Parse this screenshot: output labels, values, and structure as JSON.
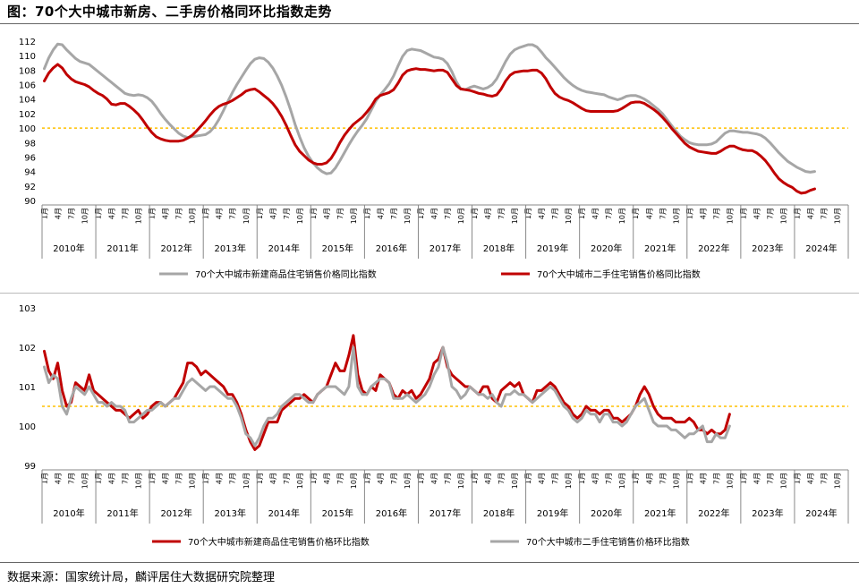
{
  "title": "图：70个大中城市新房、二手房价格同环比指数走势",
  "source": "数据来源：国家统计局，麟评居住大数据研究院整理",
  "colors": {
    "gray": "#A6A6A6",
    "red": "#C00000",
    "ref": "#FFC000",
    "axis": "#888888"
  },
  "month_labels": [
    "1月",
    "4月",
    "7月",
    "10月"
  ],
  "chart_data": [
    {
      "type": "line",
      "x_start": "2010-01",
      "years": [
        "2010年",
        "2011年",
        "2012年",
        "2013年",
        "2014年",
        "2015年",
        "2016年",
        "2017年",
        "2018年",
        "2019年",
        "2020年",
        "2021年",
        "2022年",
        "2023年",
        "2024年"
      ],
      "ylim": [
        90,
        112
      ],
      "yticks": [
        "90",
        "92",
        "94",
        "96",
        "98",
        "100",
        "102",
        "104",
        "106",
        "108",
        "110",
        "112"
      ],
      "reference_line": 100,
      "legend_placement": "bottom",
      "series": [
        {
          "name": "70个大中城市新建商品住宅销售价格同比指数",
          "color": "gray",
          "values": [
            108.2,
            109.7,
            110.8,
            111.6,
            111.5,
            110.8,
            110.2,
            109.6,
            109.2,
            109.0,
            108.8,
            108.3,
            107.8,
            107.3,
            106.8,
            106.3,
            105.8,
            105.3,
            104.8,
            104.6,
            104.5,
            104.6,
            104.5,
            104.2,
            103.7,
            102.9,
            102.0,
            101.2,
            100.5,
            99.9,
            99.3,
            98.9,
            98.7,
            98.8,
            98.9,
            99.0,
            99.1,
            99.5,
            100.2,
            101.2,
            102.4,
            103.7,
            104.9,
            106.0,
            107.0,
            108.0,
            108.9,
            109.5,
            109.7,
            109.6,
            109.1,
            108.3,
            107.2,
            105.9,
            104.3,
            102.5,
            100.5,
            98.8,
            97.3,
            96.1,
            95.2,
            94.5,
            94.0,
            93.7,
            93.8,
            94.5,
            95.5,
            96.6,
            97.7,
            98.7,
            99.6,
            100.4,
            101.3,
            102.5,
            103.7,
            104.6,
            105.3,
            106.1,
            107.2,
            108.6,
            109.9,
            110.7,
            110.9,
            110.8,
            110.7,
            110.4,
            110.1,
            109.8,
            109.7,
            109.5,
            108.9,
            107.8,
            106.4,
            105.4,
            105.3,
            105.6,
            105.8,
            105.6,
            105.4,
            105.6,
            106.0,
            106.8,
            108.0,
            109.2,
            110.2,
            110.8,
            111.1,
            111.3,
            111.5,
            111.5,
            111.2,
            110.5,
            109.7,
            109.1,
            108.4,
            107.7,
            107.0,
            106.4,
            105.9,
            105.5,
            105.2,
            105.0,
            104.9,
            104.8,
            104.7,
            104.6,
            104.3,
            104.1,
            103.9,
            104.1,
            104.4,
            104.5,
            104.5,
            104.3,
            104.0,
            103.6,
            103.1,
            102.6,
            102.0,
            101.2,
            100.4,
            99.6,
            98.9,
            98.4,
            98.0,
            97.8,
            97.7,
            97.7,
            97.7,
            97.8,
            98.1,
            98.7,
            99.3,
            99.6,
            99.6,
            99.5,
            99.4,
            99.4,
            99.3,
            99.2,
            99.0,
            98.6,
            98.0,
            97.3,
            96.6,
            96.0,
            95.4,
            95.0,
            94.6,
            94.3,
            94.0,
            93.9,
            94.0
          ]
        },
        {
          "name": "70个大中城市二手住宅销售价格同比指数",
          "color": "red",
          "values": [
            106.5,
            107.6,
            108.3,
            108.8,
            108.3,
            107.4,
            106.8,
            106.4,
            106.2,
            106.0,
            105.7,
            105.2,
            104.8,
            104.5,
            104.0,
            103.3,
            103.2,
            103.4,
            103.4,
            103.0,
            102.5,
            101.9,
            101.1,
            100.2,
            99.4,
            98.8,
            98.5,
            98.3,
            98.2,
            98.2,
            98.2,
            98.3,
            98.6,
            99.0,
            99.6,
            100.3,
            101.0,
            101.8,
            102.5,
            103.0,
            103.3,
            103.5,
            103.8,
            104.2,
            104.6,
            105.1,
            105.3,
            105.4,
            105.0,
            104.5,
            104.0,
            103.4,
            102.6,
            101.6,
            100.4,
            99.0,
            97.7,
            96.8,
            96.2,
            95.6,
            95.2,
            95.0,
            95.0,
            95.2,
            95.8,
            96.8,
            98.0,
            99.0,
            99.8,
            100.5,
            101.0,
            101.5,
            102.2,
            103.0,
            104.0,
            104.5,
            104.7,
            104.9,
            105.3,
            106.2,
            107.3,
            107.9,
            108.1,
            108.2,
            108.1,
            108.1,
            108.0,
            107.9,
            108.0,
            108.0,
            107.7,
            106.8,
            105.9,
            105.4,
            105.3,
            105.2,
            105.0,
            104.8,
            104.7,
            104.5,
            104.4,
            104.6,
            105.4,
            106.5,
            107.3,
            107.7,
            107.8,
            107.9,
            107.9,
            108.0,
            108.0,
            107.6,
            106.8,
            105.7,
            104.8,
            104.3,
            104.0,
            103.8,
            103.5,
            103.1,
            102.7,
            102.4,
            102.3,
            102.3,
            102.3,
            102.3,
            102.3,
            102.3,
            102.4,
            102.7,
            103.1,
            103.5,
            103.6,
            103.6,
            103.4,
            103.0,
            102.6,
            102.1,
            101.5,
            100.8,
            100.0,
            99.3,
            98.6,
            97.9,
            97.4,
            97.1,
            96.8,
            96.7,
            96.6,
            96.5,
            96.5,
            96.8,
            97.2,
            97.5,
            97.5,
            97.2,
            97.0,
            96.9,
            96.9,
            96.6,
            96.1,
            95.5,
            94.7,
            93.8,
            93.0,
            92.5,
            92.1,
            91.8,
            91.3,
            91.0,
            91.1,
            91.4,
            91.6
          ]
        }
      ]
    },
    {
      "type": "line",
      "x_start": "2010-01",
      "years": [
        "2010年",
        "2011年",
        "2012年",
        "2013年",
        "2014年",
        "2015年",
        "2016年",
        "2017年",
        "2018年",
        "2019年",
        "2020年",
        "2021年",
        "2022年",
        "2023年",
        "2024年"
      ],
      "ylim": [
        99,
        103
      ],
      "yticks": [
        "99",
        "100",
        "101",
        "102",
        "103"
      ],
      "reference_line": 100.5,
      "legend_placement": "bottom",
      "series": [
        {
          "name": "70个大中城市新建商品住宅销售价格环比指数",
          "color": "red",
          "values": [
            101.9,
            101.4,
            101.2,
            101.6,
            100.9,
            100.5,
            100.6,
            101.1,
            101.0,
            100.9,
            101.3,
            100.9,
            100.8,
            100.7,
            100.6,
            100.5,
            100.4,
            100.4,
            100.3,
            100.2,
            100.3,
            100.4,
            100.2,
            100.3,
            100.5,
            100.6,
            100.6,
            100.5,
            100.6,
            100.7,
            100.9,
            101.1,
            101.6,
            101.6,
            101.5,
            101.3,
            101.4,
            101.3,
            101.2,
            101.1,
            101.0,
            100.8,
            100.8,
            100.6,
            100.3,
            99.9,
            99.6,
            99.4,
            99.5,
            99.8,
            100.1,
            100.1,
            100.1,
            100.4,
            100.5,
            100.6,
            100.7,
            100.7,
            100.8,
            100.7,
            100.6,
            100.8,
            100.9,
            101.0,
            101.3,
            101.6,
            101.4,
            101.4,
            101.8,
            102.3,
            101.3,
            100.9,
            100.8,
            101.0,
            100.9,
            101.3,
            101.2,
            101.1,
            100.8,
            100.7,
            100.9,
            100.8,
            100.9,
            100.7,
            100.8,
            101.0,
            101.2,
            101.6,
            101.7,
            102.0,
            101.5,
            101.3,
            101.2,
            101.1,
            101.0,
            101.0,
            100.9,
            100.8,
            101.0,
            101.0,
            100.7,
            100.6,
            100.9,
            101.0,
            101.1,
            101.0,
            101.1,
            100.8,
            100.7,
            100.6,
            100.9,
            100.9,
            101.0,
            101.1,
            101.0,
            100.8,
            100.6,
            100.5,
            100.3,
            100.2,
            100.3,
            100.5,
            100.4,
            100.4,
            100.3,
            100.4,
            100.4,
            100.2,
            100.2,
            100.1,
            100.2,
            100.3,
            100.5,
            100.8,
            101.0,
            100.8,
            100.5,
            100.3,
            100.2,
            100.2,
            100.2,
            100.1,
            100.1,
            100.1,
            100.2,
            100.1,
            99.9,
            99.9,
            99.8,
            99.9,
            99.8,
            99.8,
            99.9,
            100.3
          ]
        },
        {
          "name": "70个大中城市二手住宅销售价格环比指数",
          "color": "gray",
          "values": [
            101.5,
            101.1,
            101.3,
            101.2,
            100.5,
            100.3,
            100.7,
            101.0,
            100.9,
            100.8,
            101.0,
            100.8,
            100.6,
            100.6,
            100.5,
            100.6,
            100.5,
            100.5,
            100.4,
            100.1,
            100.1,
            100.2,
            100.3,
            100.4,
            100.4,
            100.5,
            100.6,
            100.5,
            100.6,
            100.7,
            100.7,
            100.9,
            101.1,
            101.2,
            101.1,
            101.0,
            100.9,
            101.0,
            101.0,
            100.9,
            100.8,
            100.7,
            100.7,
            100.5,
            100.2,
            99.8,
            99.7,
            99.5,
            99.7,
            100.0,
            100.2,
            100.2,
            100.3,
            100.5,
            100.6,
            100.7,
            100.8,
            100.8,
            100.7,
            100.6,
            100.6,
            100.8,
            100.9,
            101.0,
            101.0,
            101.0,
            100.9,
            100.8,
            101.0,
            102.0,
            101.0,
            100.8,
            100.8,
            101.0,
            101.1,
            101.2,
            101.2,
            101.1,
            100.7,
            100.7,
            100.7,
            100.8,
            100.7,
            100.6,
            100.7,
            100.8,
            101.0,
            101.3,
            101.5,
            102.0,
            101.6,
            101.0,
            100.9,
            100.7,
            100.8,
            101.0,
            100.9,
            100.8,
            100.8,
            100.7,
            100.8,
            100.6,
            100.5,
            100.8,
            100.8,
            100.9,
            100.8,
            100.8,
            100.7,
            100.6,
            100.7,
            100.8,
            100.9,
            101.0,
            100.9,
            100.7,
            100.5,
            100.4,
            100.2,
            100.1,
            100.2,
            100.4,
            100.3,
            100.3,
            100.1,
            100.3,
            100.3,
            100.1,
            100.1,
            100.0,
            100.1,
            100.3,
            100.5,
            100.6,
            100.7,
            100.4,
            100.1,
            100.0,
            100.0,
            100.0,
            99.9,
            99.9,
            99.8,
            99.7,
            99.8,
            99.8,
            99.9,
            100.0,
            99.6,
            99.6,
            99.8,
            99.7,
            99.7,
            100.0
          ]
        }
      ]
    }
  ]
}
